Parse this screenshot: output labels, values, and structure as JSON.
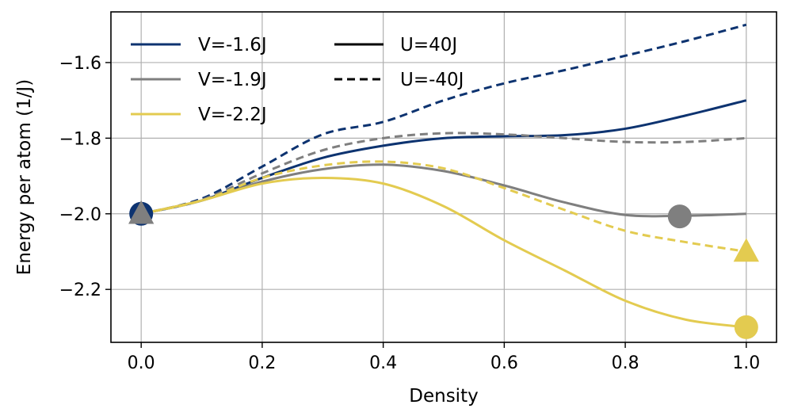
{
  "chart_data": {
    "type": "line",
    "title": "",
    "xlabel": "Density",
    "ylabel": "Energy per atom (1/J)",
    "xlim": [
      -0.05,
      1.05
    ],
    "ylim": [
      -2.34,
      -1.466
    ],
    "grid": true,
    "xticks": [
      0.0,
      0.2,
      0.4,
      0.6,
      0.8,
      1.0
    ],
    "xtick_labels": [
      "0.0",
      "0.2",
      "0.4",
      "0.6",
      "0.8",
      "1.0"
    ],
    "yticks": [
      -1.6,
      -1.8,
      -2.0,
      -2.2
    ],
    "ytick_labels": [
      "−1.6",
      "−1.8",
      "−2.0",
      "−2.2"
    ],
    "legend_position": "top-left",
    "legend": {
      "colors": [
        {
          "label": "V=-1.6J",
          "color": "#0d3370"
        },
        {
          "label": "V=-1.9J",
          "color": "#7f7f7f"
        },
        {
          "label": "V=-2.2J",
          "color": "#e3cb50"
        }
      ],
      "styles": [
        {
          "label": "U=40J",
          "dash": "solid"
        },
        {
          "label": "U=-40J",
          "dash": "dashed"
        }
      ]
    },
    "series": [
      {
        "name": "V=-1.6J, U=40J",
        "color": "#0d3370",
        "dash": "solid",
        "x": [
          0.0,
          0.1,
          0.2,
          0.3,
          0.4,
          0.5,
          0.6,
          0.7,
          0.8,
          0.9,
          1.0
        ],
        "y": [
          -2.0,
          -1.965,
          -1.905,
          -1.852,
          -1.82,
          -1.8,
          -1.795,
          -1.792,
          -1.775,
          -1.74,
          -1.7
        ]
      },
      {
        "name": "V=-1.6J, U=-40J",
        "color": "#0d3370",
        "dash": "dashed",
        "x": [
          0.0,
          0.1,
          0.2,
          0.3,
          0.4,
          0.5,
          0.6,
          0.7,
          0.8,
          0.9,
          1.0
        ],
        "y": [
          -2.0,
          -1.96,
          -1.875,
          -1.79,
          -1.757,
          -1.7,
          -1.655,
          -1.62,
          -1.582,
          -1.543,
          -1.5
        ]
      },
      {
        "name": "V=-1.9J, U=40J",
        "color": "#7f7f7f",
        "dash": "solid",
        "x": [
          0.0,
          0.1,
          0.2,
          0.3,
          0.4,
          0.5,
          0.6,
          0.7,
          0.8,
          0.9,
          1.0
        ],
        "y": [
          -2.0,
          -1.965,
          -1.915,
          -1.882,
          -1.87,
          -1.887,
          -1.925,
          -1.97,
          -2.003,
          -2.005,
          -2.0
        ]
      },
      {
        "name": "V=-1.9J, U=-40J",
        "color": "#7f7f7f",
        "dash": "dashed",
        "x": [
          0.0,
          0.1,
          0.2,
          0.3,
          0.4,
          0.5,
          0.6,
          0.7,
          0.8,
          0.9,
          1.0
        ],
        "y": [
          -2.0,
          -1.963,
          -1.893,
          -1.832,
          -1.8,
          -1.787,
          -1.79,
          -1.8,
          -1.81,
          -1.81,
          -1.8
        ]
      },
      {
        "name": "V=-2.2J, U=40J",
        "color": "#e3cb50",
        "dash": "solid",
        "x": [
          0.0,
          0.1,
          0.2,
          0.3,
          0.4,
          0.5,
          0.6,
          0.7,
          0.8,
          0.9,
          1.0
        ],
        "y": [
          -2.0,
          -1.965,
          -1.92,
          -1.905,
          -1.92,
          -1.98,
          -2.07,
          -2.15,
          -2.23,
          -2.28,
          -2.3
        ]
      },
      {
        "name": "V=-2.2J, U=-40J",
        "color": "#e3cb50",
        "dash": "dashed",
        "x": [
          0.0,
          0.1,
          0.2,
          0.3,
          0.4,
          0.5,
          0.6,
          0.7,
          0.8,
          0.9,
          1.0
        ],
        "y": [
          -2.0,
          -1.965,
          -1.905,
          -1.872,
          -1.862,
          -1.88,
          -1.932,
          -1.99,
          -2.045,
          -2.075,
          -2.1
        ]
      }
    ],
    "markers": [
      {
        "shape": "circle",
        "color": "#0d3370",
        "x": 0.0,
        "y": -2.0
      },
      {
        "shape": "triangle",
        "color": "#7f7f7f",
        "x": 0.0,
        "y": -2.0
      },
      {
        "shape": "circle",
        "color": "#7f7f7f",
        "x": 0.89,
        "y": -2.007
      },
      {
        "shape": "triangle",
        "color": "#e3cb50",
        "x": 1.0,
        "y": -2.1
      },
      {
        "shape": "circle",
        "color": "#e3cb50",
        "x": 1.0,
        "y": -2.3
      }
    ]
  }
}
